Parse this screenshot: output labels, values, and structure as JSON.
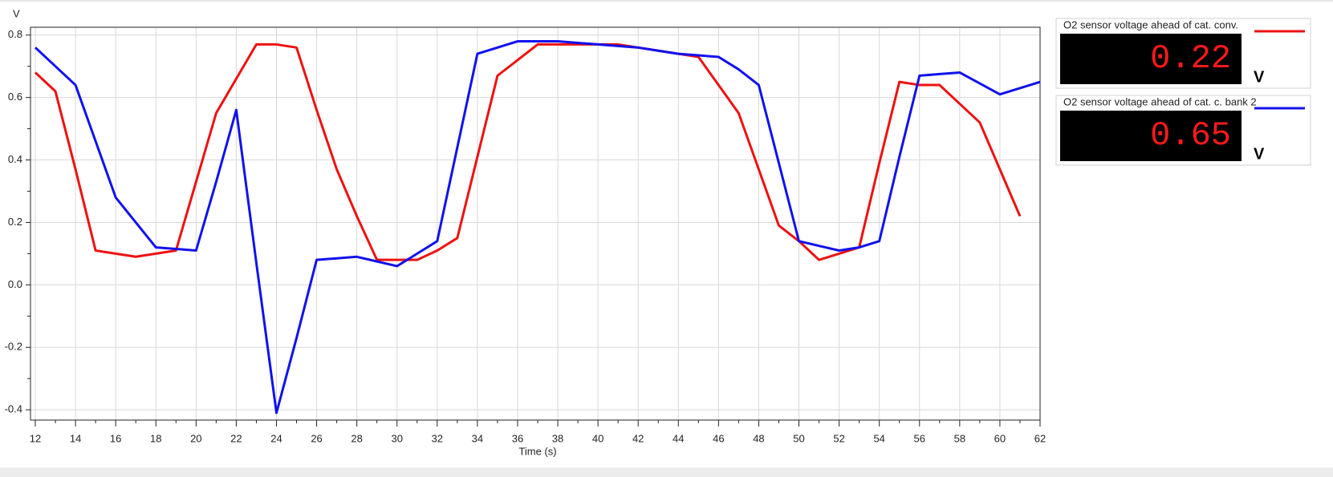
{
  "chart_data": {
    "type": "line",
    "y_label": "V",
    "x_label": "Time (s)",
    "x": [
      12,
      13,
      14,
      15,
      16,
      17,
      18,
      19,
      20,
      21,
      22,
      23,
      24,
      25,
      26,
      27,
      28,
      29,
      30,
      31,
      32,
      33,
      34,
      35,
      36,
      37,
      38,
      39,
      40,
      41,
      42,
      43,
      44,
      45,
      46,
      47,
      48,
      49,
      50,
      51,
      52,
      53,
      54,
      55,
      56,
      57,
      58,
      59,
      60,
      61,
      62
    ],
    "series": [
      {
        "name": "O2 sensor voltage ahead of cat. conv.",
        "color": "#ee1111",
        "current": 0.22,
        "unit": "V",
        "values": [
          0.68,
          0.62,
          0.37,
          0.11,
          0.1,
          0.09,
          0.1,
          0.11,
          0.33,
          0.55,
          0.66,
          0.77,
          0.77,
          0.76,
          0.56,
          0.37,
          0.22,
          0.08,
          0.08,
          0.08,
          0.11,
          0.15,
          0.41,
          0.67,
          0.72,
          0.77,
          0.77,
          0.77,
          0.77,
          0.77,
          0.76,
          0.75,
          0.74,
          0.73,
          0.64,
          0.55,
          0.37,
          0.19,
          0.14,
          0.08,
          0.1,
          0.12,
          0.39,
          0.65,
          0.64,
          0.64,
          0.58,
          0.52,
          0.37,
          0.22,
          null
        ]
      },
      {
        "name": "O2 sensor voltage ahead of cat. c. bank 2",
        "color": "#1111ee",
        "current": 0.65,
        "unit": "V",
        "values": [
          0.76,
          0.7,
          0.64,
          0.46,
          0.28,
          0.2,
          0.12,
          0.115,
          0.11,
          0.33,
          0.56,
          0.07,
          -0.41,
          -0.17,
          0.08,
          0.085,
          0.09,
          0.075,
          0.06,
          0.1,
          0.14,
          0.44,
          0.74,
          0.76,
          0.78,
          0.78,
          0.78,
          0.775,
          0.77,
          0.765,
          0.76,
          0.75,
          0.74,
          0.735,
          0.73,
          0.69,
          0.64,
          0.39,
          0.14,
          0.125,
          0.11,
          0.12,
          0.14,
          0.41,
          0.67,
          0.675,
          0.68,
          0.645,
          0.61,
          0.63,
          0.65
        ]
      }
    ],
    "xlim": [
      12,
      62
    ],
    "ylim": [
      -0.433,
      0.825
    ],
    "xticks": [
      12,
      14,
      16,
      18,
      20,
      22,
      24,
      26,
      28,
      30,
      32,
      34,
      36,
      38,
      40,
      42,
      44,
      46,
      48,
      50,
      52,
      54,
      56,
      58,
      60,
      62
    ],
    "yticks": [
      0.8,
      0.6,
      0.4,
      0.2,
      {
        "value": 0,
        "label": "0.0"
      },
      -0.2,
      -0.4
    ],
    "grid": true
  }
}
